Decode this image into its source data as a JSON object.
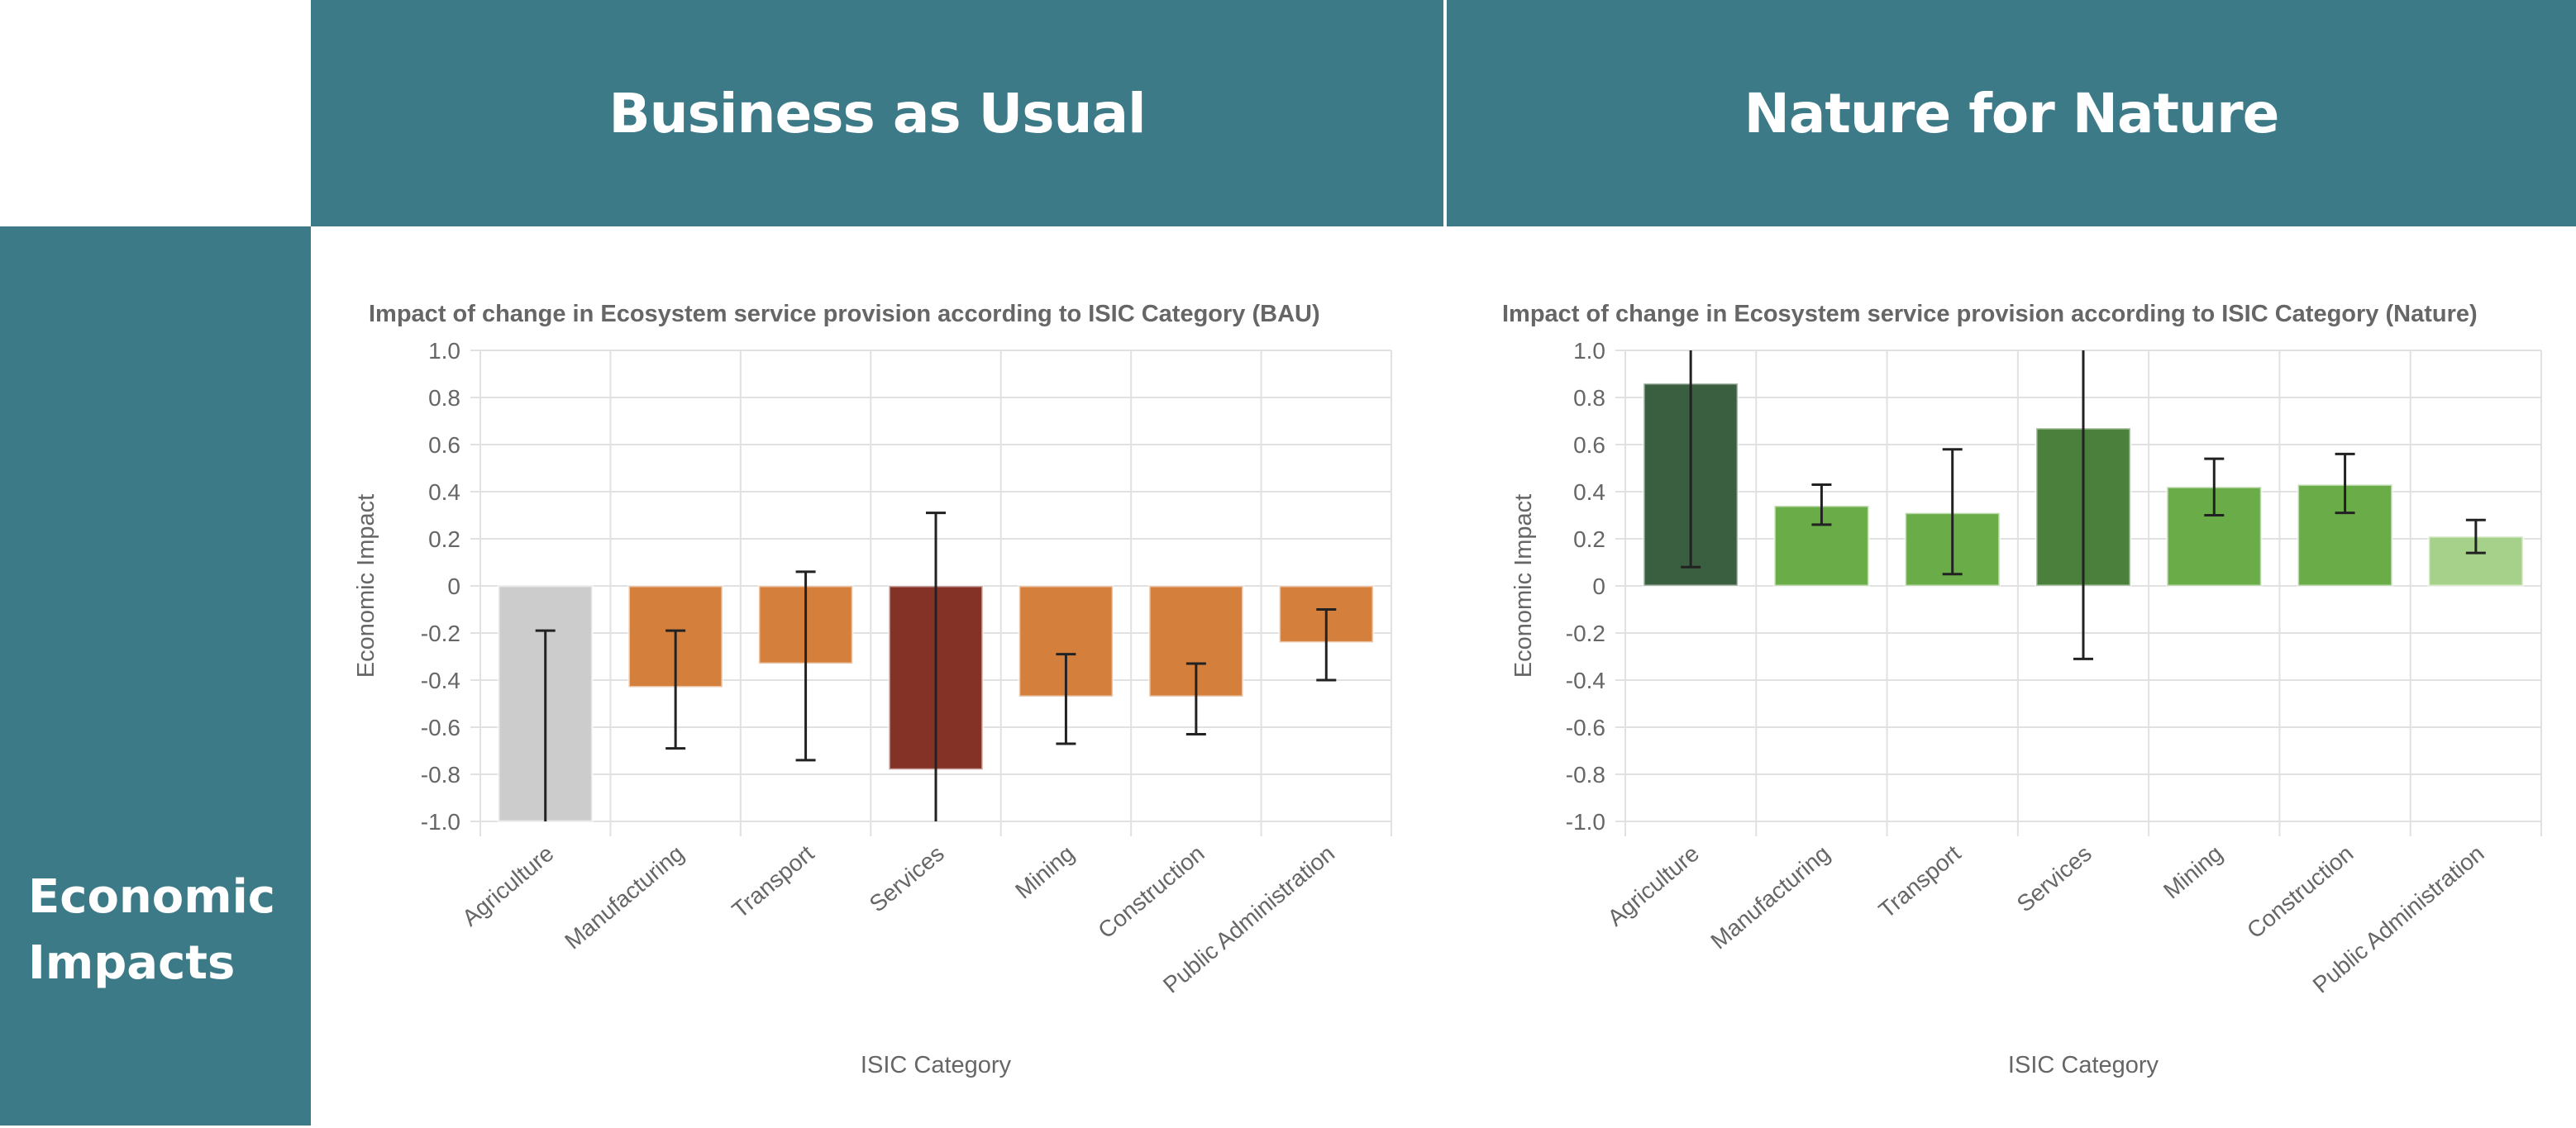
{
  "table": {
    "col_headers": [
      "Business as Usual",
      "Nature for Nature"
    ],
    "row_header": "Economic Impacts"
  },
  "chart_data": [
    {
      "type": "bar",
      "title": "Impact of change in Ecosystem service provision according to ISIC Category (BAU)",
      "xlabel": "ISIC Category",
      "ylabel": "Economic Impact",
      "ylim": [
        -1.0,
        1.0
      ],
      "yticks": [
        1.0,
        0.8,
        0.6,
        0.4,
        0.2,
        0,
        -0.2,
        -0.4,
        -0.6,
        -0.8,
        -1.0
      ],
      "ytick_labels": [
        "1.0",
        "0.8",
        "0.6",
        "0.4",
        "0.2",
        "0",
        "-0.2",
        "-0.4",
        "-0.6",
        "-0.8",
        "-1.0"
      ],
      "grid": true,
      "categories": [
        "Agriculture",
        "Manufacturing",
        "Transport",
        "Services",
        "Mining",
        "Construction",
        "Public Administration"
      ],
      "values": [
        -1.0,
        -0.43,
        -0.33,
        -0.78,
        -0.47,
        -0.47,
        -0.24
      ],
      "error_low": [
        -1.0,
        -0.69,
        -0.74,
        -1.0,
        -0.67,
        -0.63,
        -0.4
      ],
      "error_high": [
        -0.19,
        -0.19,
        0.06,
        0.31,
        -0.29,
        -0.33,
        -0.1
      ],
      "colors": [
        "#cccccc",
        "#d47f3c",
        "#d47f3c",
        "#843226",
        "#d47f3c",
        "#d47f3c",
        "#d47f3c"
      ]
    },
    {
      "type": "bar",
      "title": "Impact of change in Ecosystem service provision according to ISIC Category (Nature)",
      "xlabel": "ISIC Category",
      "ylabel": "Economic Impact",
      "ylim": [
        -1.0,
        1.0
      ],
      "yticks": [
        1.0,
        0.8,
        0.6,
        0.4,
        0.2,
        0,
        -0.2,
        -0.4,
        -0.6,
        -0.8,
        -1.0
      ],
      "ytick_labels": [
        "1.0",
        "0.8",
        "0.6",
        "0.4",
        "0.2",
        "0",
        "-0.2",
        "-0.4",
        "-0.6",
        "-0.8",
        "-1.0"
      ],
      "grid": true,
      "categories": [
        "Agriculture",
        "Manufacturing",
        "Transport",
        "Services",
        "Mining",
        "Construction",
        "Public Administration"
      ],
      "values": [
        0.86,
        0.34,
        0.31,
        0.67,
        0.42,
        0.43,
        0.21
      ],
      "error_low": [
        0.08,
        0.26,
        0.05,
        -0.31,
        0.3,
        0.31,
        0.14
      ],
      "error_high": [
        1.0,
        0.43,
        0.58,
        1.0,
        0.54,
        0.56,
        0.28
      ],
      "colors": [
        "#3a5e40",
        "#6aac47",
        "#6aac47",
        "#4b7f3c",
        "#6aac47",
        "#6aac47",
        "#a5d18a"
      ]
    }
  ]
}
